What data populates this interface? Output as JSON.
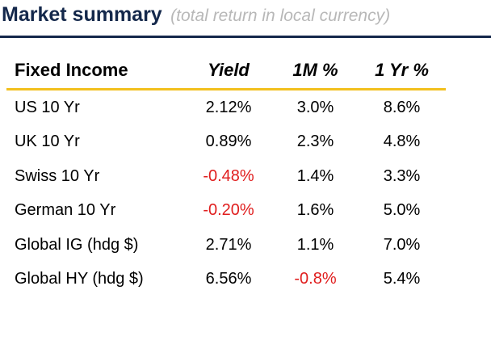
{
  "header": {
    "title": "Market summary",
    "subtitle": "(total return in local currency)"
  },
  "colors": {
    "title": "#14284b",
    "subtitle": "#b8b8b8",
    "header_rule": "#14284b",
    "table_rule": "#f2c01e",
    "negative": "#e01e1e"
  },
  "table": {
    "columns": [
      "Fixed Income",
      "Yield",
      "1M %",
      "1 Yr %"
    ],
    "rows": [
      {
        "name": "US 10 Yr",
        "yield": "2.12%",
        "m1": "3.0%",
        "yr1": "8.6%",
        "neg": []
      },
      {
        "name": "UK 10 Yr",
        "yield": "0.89%",
        "m1": "2.3%",
        "yr1": "4.8%",
        "neg": []
      },
      {
        "name": "Swiss 10 Yr",
        "yield": "-0.48%",
        "m1": "1.4%",
        "yr1": "3.3%",
        "neg": [
          "yield"
        ]
      },
      {
        "name": "German 10 Yr",
        "yield": "-0.20%",
        "m1": "1.6%",
        "yr1": "5.0%",
        "neg": [
          "yield"
        ]
      },
      {
        "name": "Global IG (hdg $)",
        "yield": "2.71%",
        "m1": "1.1%",
        "yr1": "7.0%",
        "neg": []
      },
      {
        "name": "Global HY (hdg $)",
        "yield": "6.56%",
        "m1": "-0.8%",
        "yr1": "5.4%",
        "neg": [
          "m1"
        ]
      }
    ]
  }
}
